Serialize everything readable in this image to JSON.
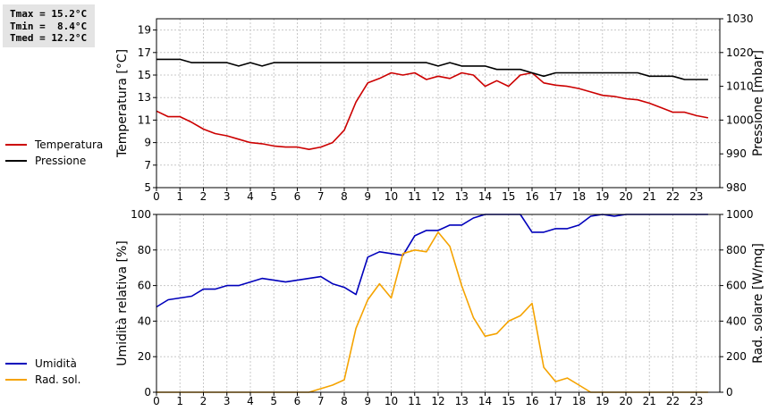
{
  "stats": {
    "tmax": "Tmax = 15.2°C",
    "tmin": "Tmin =  8.4°C",
    "tmed": "Tmed = 12.2°C"
  },
  "colors": {
    "temperatura": "#cc0000",
    "pressione": "#000000",
    "umidita": "#0000bb",
    "radiazione": "#f5a300",
    "grid": "#c8c8c8"
  },
  "chart_data": [
    {
      "type": "line",
      "ylabel": "Temperatura [°C]",
      "y2label": "Pressione [mbar]",
      "xlim": [
        0,
        24
      ],
      "ylim": [
        5,
        20
      ],
      "y2lim": [
        980,
        1030
      ],
      "x_ticks": [
        0,
        1,
        2,
        3,
        4,
        5,
        6,
        7,
        8,
        9,
        10,
        11,
        12,
        13,
        14,
        15,
        16,
        17,
        18,
        19,
        20,
        21,
        22,
        23
      ],
      "y_ticks": [
        5,
        7,
        9,
        11,
        13,
        15,
        17,
        19
      ],
      "y2_ticks": [
        980,
        990,
        1000,
        1010,
        1020,
        1030
      ],
      "grid": true,
      "legend_position": "left-outside",
      "series": [
        {
          "name": "Temperatura",
          "axis": "left",
          "x": [
            0,
            0.5,
            1,
            1.5,
            2,
            2.5,
            3,
            3.5,
            4,
            4.5,
            5,
            5.5,
            6,
            6.5,
            7,
            7.5,
            8,
            8.5,
            9,
            9.5,
            10,
            10.5,
            11,
            11.5,
            12,
            12.5,
            13,
            13.5,
            14,
            14.5,
            15,
            15.5,
            16,
            16.5,
            17,
            17.5,
            18,
            18.5,
            19,
            19.5,
            20,
            20.5,
            21,
            21.5,
            22,
            22.5,
            23,
            23.5
          ],
          "y": [
            11.8,
            11.3,
            11.3,
            10.8,
            10.2,
            9.8,
            9.6,
            9.3,
            9.0,
            8.9,
            8.7,
            8.6,
            8.6,
            8.4,
            8.6,
            9.0,
            10.1,
            12.6,
            14.3,
            14.7,
            15.2,
            15.0,
            15.2,
            14.6,
            14.9,
            14.7,
            15.2,
            15.0,
            14.0,
            14.5,
            14.0,
            15.0,
            15.2,
            14.3,
            14.1,
            14.0,
            13.8,
            13.5,
            13.2,
            13.1,
            12.9,
            12.8,
            12.5,
            12.1,
            11.7,
            11.7,
            11.4,
            11.2
          ]
        },
        {
          "name": "Pressione",
          "axis": "right",
          "x": [
            0,
            0.5,
            1,
            1.5,
            2,
            2.5,
            3,
            3.5,
            4,
            4.5,
            5,
            5.5,
            6,
            6.5,
            7,
            7.5,
            8,
            8.5,
            9,
            9.5,
            10,
            10.5,
            11,
            11.5,
            12,
            12.5,
            13,
            13.5,
            14,
            14.5,
            15,
            15.5,
            16,
            16.5,
            17,
            17.5,
            18,
            18.5,
            19,
            19.5,
            20,
            20.5,
            21,
            21.5,
            22,
            22.5,
            23,
            23.5
          ],
          "y": [
            1018,
            1018,
            1018,
            1017,
            1017,
            1017,
            1017,
            1016,
            1017,
            1016,
            1017,
            1017,
            1017,
            1017,
            1017,
            1017,
            1017,
            1017,
            1017,
            1017,
            1017,
            1017,
            1017,
            1017,
            1016,
            1017,
            1016,
            1016,
            1016,
            1015,
            1015,
            1015,
            1014,
            1013,
            1014,
            1014,
            1014,
            1014,
            1014,
            1014,
            1014,
            1014,
            1013,
            1013,
            1013,
            1012,
            1012,
            1012
          ]
        }
      ]
    },
    {
      "type": "line",
      "ylabel": "Umidità relativa [%]",
      "y2label": "Rad. solare [W/mq]",
      "xlim": [
        0,
        24
      ],
      "ylim": [
        0,
        100
      ],
      "y2lim": [
        0,
        1000
      ],
      "x_ticks": [
        0,
        1,
        2,
        3,
        4,
        5,
        6,
        7,
        8,
        9,
        10,
        11,
        12,
        13,
        14,
        15,
        16,
        17,
        18,
        19,
        20,
        21,
        22,
        23
      ],
      "y_ticks": [
        0,
        20,
        40,
        60,
        80,
        100
      ],
      "y2_ticks": [
        0,
        200,
        400,
        600,
        800,
        1000
      ],
      "grid": true,
      "legend_position": "left-outside",
      "series": [
        {
          "name": "Umidità",
          "axis": "left",
          "x": [
            0,
            0.5,
            1,
            1.5,
            2,
            2.5,
            3,
            3.5,
            4,
            4.5,
            5,
            5.5,
            6,
            6.5,
            7,
            7.5,
            8,
            8.5,
            9,
            9.5,
            10,
            10.5,
            11,
            11.5,
            12,
            12.5,
            13,
            13.5,
            14,
            14.5,
            15,
            15.5,
            16,
            16.5,
            17,
            17.5,
            18,
            18.5,
            19,
            19.5,
            20,
            20.5,
            21,
            21.5,
            22,
            22.5,
            23,
            23.5
          ],
          "y": [
            48,
            52,
            53,
            54,
            58,
            58,
            60,
            60,
            62,
            64,
            63,
            62,
            63,
            64,
            65,
            61,
            59,
            55,
            76,
            79,
            78,
            77,
            88,
            91,
            91,
            94,
            94,
            98,
            100,
            100,
            100,
            100,
            90,
            90,
            92,
            92,
            94,
            99,
            100,
            99,
            100,
            100,
            100,
            100,
            100,
            100,
            100,
            100
          ]
        },
        {
          "name": "Rad. sol.",
          "axis": "right",
          "x": [
            0,
            0.5,
            1,
            1.5,
            2,
            2.5,
            3,
            3.5,
            4,
            4.5,
            5,
            5.5,
            6,
            6.5,
            7,
            7.5,
            8,
            8.5,
            9,
            9.5,
            10,
            10.5,
            11,
            11.5,
            12,
            12.5,
            13,
            13.5,
            14,
            14.5,
            15,
            15.5,
            16,
            16.5,
            17,
            17.5,
            18,
            18.5,
            19,
            19.5,
            20,
            20.5,
            21,
            21.5,
            22,
            22.5,
            23,
            23.5
          ],
          "y": [
            0,
            0,
            0,
            0,
            0,
            0,
            0,
            0,
            0,
            0,
            0,
            0,
            0,
            0,
            20,
            40,
            70,
            360,
            520,
            610,
            530,
            780,
            800,
            790,
            900,
            820,
            600,
            420,
            315,
            330,
            400,
            430,
            500,
            140,
            60,
            80,
            40,
            0,
            0,
            0,
            0,
            0,
            0,
            0,
            0,
            0,
            0,
            0
          ]
        }
      ]
    }
  ]
}
